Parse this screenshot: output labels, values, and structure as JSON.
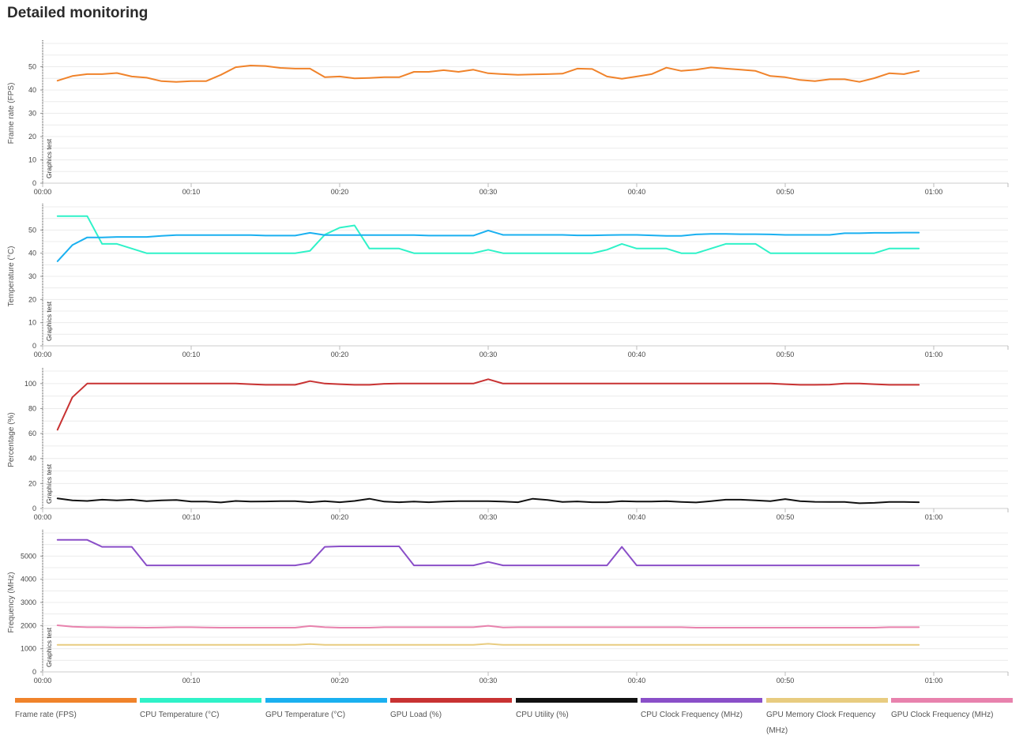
{
  "page": {
    "title": "Detailed monitoring"
  },
  "chart_data": [
    {
      "type": "line",
      "ylabel": "Frame rate (FPS)",
      "marker_label": "Graphics test",
      "x_ticks": [
        "00:00",
        "00:10",
        "00:20",
        "00:30",
        "00:40",
        "00:50",
        "01:00"
      ],
      "y_ticks": [
        0,
        10,
        20,
        30,
        40,
        50
      ],
      "ylim": [
        0,
        60
      ],
      "xlim": [
        0,
        65
      ],
      "series": [
        {
          "name": "Frame rate (FPS)",
          "color": "#f0832b",
          "key": "fps",
          "x": [
            1,
            2,
            3,
            4,
            5,
            6,
            7,
            8,
            9,
            10,
            11,
            12,
            13,
            14,
            15,
            16,
            17,
            18,
            19,
            20,
            21,
            22,
            23,
            24,
            25,
            26,
            27,
            28,
            29,
            30,
            31,
            32,
            33,
            34,
            35,
            36,
            37,
            38,
            39,
            40,
            41,
            42,
            43,
            44,
            45,
            46,
            47,
            48,
            49,
            50,
            51,
            52,
            53,
            54,
            55,
            56,
            57,
            58,
            59
          ],
          "values": [
            44,
            46,
            46.8,
            46.8,
            47.3,
            45.8,
            45.3,
            43.8,
            43.5,
            43.8,
            43.8,
            46.5,
            49.8,
            50.5,
            50.3,
            49.5,
            49.2,
            49.2,
            45.5,
            45.8,
            45,
            45.2,
            45.5,
            45.5,
            47.8,
            47.8,
            48.5,
            47.8,
            48.7,
            47.2,
            46.8,
            46.5,
            46.7,
            46.8,
            47,
            49.2,
            49,
            45.8,
            44.8,
            45.8,
            46.8,
            49.6,
            48.2,
            48.7,
            49.7,
            49.2,
            48.7,
            48.2,
            46,
            45.5,
            44.3,
            43.8,
            44.6,
            44.6,
            43.5,
            45.1,
            47.2,
            46.8,
            48.2
          ]
        }
      ]
    },
    {
      "type": "line",
      "ylabel": "Temperature (°C)",
      "marker_label": "Graphics test",
      "x_ticks": [
        "00:00",
        "00:10",
        "00:20",
        "00:30",
        "00:40",
        "00:50",
        "01:00"
      ],
      "y_ticks": [
        0,
        10,
        20,
        30,
        40,
        50
      ],
      "ylim": [
        0,
        60
      ],
      "xlim": [
        0,
        65
      ],
      "series": [
        {
          "name": "CPU Temperature (°C)",
          "color": "#2ff2c8",
          "key": "cpu-temp",
          "x": [
            1,
            2,
            3,
            4,
            5,
            6,
            7,
            8,
            9,
            10,
            11,
            12,
            13,
            14,
            15,
            16,
            17,
            18,
            19,
            20,
            21,
            22,
            23,
            24,
            25,
            26,
            27,
            28,
            29,
            30,
            31,
            32,
            33,
            34,
            35,
            36,
            37,
            38,
            39,
            40,
            41,
            42,
            43,
            44,
            45,
            46,
            47,
            48,
            49,
            50,
            51,
            52,
            53,
            54,
            55,
            56,
            57,
            58,
            59
          ],
          "values": [
            56,
            56,
            56,
            44,
            44,
            42,
            40,
            40,
            40,
            40,
            40,
            40,
            40,
            40,
            40,
            40,
            40,
            41,
            48,
            51,
            52,
            42,
            42,
            42,
            40,
            40,
            40,
            40,
            40,
            41.5,
            40,
            40,
            40,
            40,
            40,
            40,
            40,
            41.5,
            44,
            42,
            42,
            42,
            40,
            40,
            42,
            44,
            44,
            44,
            40,
            40,
            40,
            40,
            40,
            40,
            40,
            40,
            42,
            42,
            42
          ]
        },
        {
          "name": "GPU Temperature (°C)",
          "color": "#1ab0f0",
          "key": "gpu-temp",
          "x": [
            1,
            2,
            3,
            4,
            5,
            6,
            7,
            8,
            9,
            10,
            11,
            12,
            13,
            14,
            15,
            16,
            17,
            18,
            19,
            20,
            21,
            22,
            23,
            24,
            25,
            26,
            27,
            28,
            29,
            30,
            31,
            32,
            33,
            34,
            35,
            36,
            37,
            38,
            39,
            40,
            41,
            42,
            43,
            44,
            45,
            46,
            47,
            48,
            49,
            50,
            51,
            52,
            53,
            54,
            55,
            56,
            57,
            58,
            59
          ],
          "values": [
            36.5,
            43.5,
            46.8,
            46.8,
            47,
            47,
            47,
            47.5,
            47.8,
            47.8,
            47.8,
            47.8,
            47.8,
            47.8,
            47.6,
            47.6,
            47.6,
            48.8,
            47.8,
            47.8,
            47.8,
            47.8,
            47.8,
            47.8,
            47.8,
            47.6,
            47.6,
            47.6,
            47.6,
            49.8,
            47.9,
            47.9,
            47.9,
            47.9,
            47.9,
            47.7,
            47.7,
            47.8,
            47.9,
            47.9,
            47.7,
            47.5,
            47.5,
            48.1,
            48.3,
            48.3,
            48.2,
            48.2,
            48.1,
            47.9,
            47.9,
            47.9,
            47.9,
            48.6,
            48.6,
            48.8,
            48.8,
            48.9,
            48.9
          ]
        }
      ]
    },
    {
      "type": "line",
      "ylabel": "Percentage (%)",
      "marker_label": "Graphics test",
      "x_ticks": [
        "00:00",
        "00:10",
        "00:20",
        "00:30",
        "00:40",
        "00:50",
        "01:00"
      ],
      "y_ticks": [
        0,
        20,
        40,
        60,
        80,
        100
      ],
      "ylim": [
        0,
        110
      ],
      "xlim": [
        0,
        65
      ],
      "series": [
        {
          "name": "GPU Load (%)",
          "color": "#c83232",
          "key": "gpu-load",
          "x": [
            1,
            2,
            3,
            4,
            5,
            6,
            7,
            8,
            9,
            10,
            11,
            12,
            13,
            14,
            15,
            16,
            17,
            18,
            19,
            20,
            21,
            22,
            23,
            24,
            25,
            26,
            27,
            28,
            29,
            30,
            31,
            32,
            33,
            34,
            35,
            36,
            37,
            38,
            39,
            40,
            41,
            42,
            43,
            44,
            45,
            46,
            47,
            48,
            49,
            50,
            51,
            52,
            53,
            54,
            55,
            56,
            57,
            58,
            59
          ],
          "values": [
            63,
            89,
            100,
            100,
            100,
            100,
            100,
            100,
            100,
            100,
            100,
            100,
            100,
            99.5,
            99,
            99,
            99,
            102,
            100,
            99.5,
            99,
            99,
            99.8,
            100,
            100,
            100,
            100,
            100,
            100,
            103.5,
            100,
            100,
            100,
            100,
            100,
            100,
            100,
            100,
            100,
            100,
            100,
            100,
            100,
            100,
            100,
            100,
            100,
            100,
            100,
            99.5,
            99,
            99,
            99.2,
            100,
            100,
            99.5,
            99,
            99,
            99
          ]
        },
        {
          "name": "CPU Utility (%)",
          "color": "#111111",
          "key": "cpu-util",
          "x": [
            1,
            2,
            3,
            4,
            5,
            6,
            7,
            8,
            9,
            10,
            11,
            12,
            13,
            14,
            15,
            16,
            17,
            18,
            19,
            20,
            21,
            22,
            23,
            24,
            25,
            26,
            27,
            28,
            29,
            30,
            31,
            32,
            33,
            34,
            35,
            36,
            37,
            38,
            39,
            40,
            41,
            42,
            43,
            44,
            45,
            46,
            47,
            48,
            49,
            50,
            51,
            52,
            53,
            54,
            55,
            56,
            57,
            58,
            59
          ],
          "values": [
            8,
            6.5,
            6,
            7,
            6.5,
            7,
            5.8,
            6.5,
            6.8,
            5.5,
            5.5,
            4.8,
            6,
            5.5,
            5.6,
            5.8,
            5.8,
            5,
            5.8,
            5,
            6,
            7.8,
            5.5,
            5,
            5.5,
            5,
            5.5,
            5.8,
            5.8,
            5.8,
            5.5,
            5,
            7.8,
            6.8,
            5.2,
            5.6,
            5,
            5,
            5.8,
            5.5,
            5.5,
            5.8,
            5.2,
            4.8,
            5.8,
            7,
            7,
            6.5,
            5.8,
            7.5,
            5.8,
            5.3,
            5.2,
            5.2,
            4.2,
            4.5,
            5.2,
            5.2,
            5
          ]
        }
      ]
    },
    {
      "type": "line",
      "ylabel": "Frequency (MHz)",
      "marker_label": "Graphics test",
      "x_ticks": [
        "00:00",
        "00:10",
        "00:20",
        "00:30",
        "00:40",
        "00:50",
        "01:00"
      ],
      "y_ticks": [
        0,
        1000,
        2000,
        3000,
        4000,
        5000
      ],
      "ylim": [
        0,
        6000
      ],
      "xlim": [
        0,
        65
      ],
      "series": [
        {
          "name": "CPU Clock Frequency (MHz)",
          "color": "#8a4fc8",
          "key": "cpu-clock",
          "x": [
            1,
            2,
            3,
            4,
            5,
            6,
            7,
            8,
            9,
            10,
            11,
            12,
            13,
            14,
            15,
            16,
            17,
            18,
            19,
            20,
            21,
            22,
            23,
            24,
            25,
            26,
            27,
            28,
            29,
            30,
            31,
            32,
            33,
            34,
            35,
            36,
            37,
            38,
            39,
            40,
            41,
            42,
            43,
            44,
            45,
            46,
            47,
            48,
            49,
            50,
            51,
            52,
            53,
            54,
            55,
            56,
            57,
            58,
            59
          ],
          "values": [
            5700,
            5700,
            5700,
            5400,
            5400,
            5400,
            4600,
            4600,
            4600,
            4600,
            4600,
            4600,
            4600,
            4600,
            4600,
            4600,
            4600,
            4700,
            5400,
            5420,
            5420,
            5420,
            5420,
            5420,
            4600,
            4600,
            4600,
            4600,
            4600,
            4750,
            4600,
            4600,
            4600,
            4600,
            4600,
            4600,
            4600,
            4600,
            5400,
            4600,
            4600,
            4600,
            4600,
            4600,
            4600,
            4600,
            4600,
            4600,
            4600,
            4600,
            4600,
            4600,
            4600,
            4600,
            4600,
            4600,
            4600,
            4600,
            4600
          ]
        },
        {
          "name": "GPU Memory Clock Frequency (MHz)",
          "color": "#e8cc80",
          "key": "gpu-mem-clock",
          "x": [
            1,
            2,
            3,
            4,
            5,
            6,
            7,
            8,
            9,
            10,
            11,
            12,
            13,
            14,
            15,
            16,
            17,
            18,
            19,
            20,
            21,
            22,
            23,
            24,
            25,
            26,
            27,
            28,
            29,
            30,
            31,
            32,
            33,
            34,
            35,
            36,
            37,
            38,
            39,
            40,
            41,
            42,
            43,
            44,
            45,
            46,
            47,
            48,
            49,
            50,
            51,
            52,
            53,
            54,
            55,
            56,
            57,
            58,
            59
          ],
          "values": [
            1165,
            1165,
            1165,
            1165,
            1165,
            1165,
            1165,
            1165,
            1165,
            1165,
            1165,
            1165,
            1165,
            1165,
            1165,
            1165,
            1165,
            1200,
            1165,
            1165,
            1165,
            1165,
            1165,
            1165,
            1165,
            1165,
            1165,
            1165,
            1165,
            1215,
            1165,
            1165,
            1165,
            1165,
            1165,
            1165,
            1165,
            1165,
            1165,
            1165,
            1165,
            1165,
            1165,
            1165,
            1165,
            1165,
            1165,
            1165,
            1165,
            1165,
            1165,
            1165,
            1165,
            1165,
            1165,
            1165,
            1165,
            1165,
            1165
          ]
        },
        {
          "name": "GPU Clock Frequency (MHz)",
          "color": "#e882ad",
          "key": "gpu-clock",
          "x": [
            1,
            2,
            3,
            4,
            5,
            6,
            7,
            8,
            9,
            10,
            11,
            12,
            13,
            14,
            15,
            16,
            17,
            18,
            19,
            20,
            21,
            22,
            23,
            24,
            25,
            26,
            27,
            28,
            29,
            30,
            31,
            32,
            33,
            34,
            35,
            36,
            37,
            38,
            39,
            40,
            41,
            42,
            43,
            44,
            45,
            46,
            47,
            48,
            49,
            50,
            51,
            52,
            53,
            54,
            55,
            56,
            57,
            58,
            59
          ],
          "values": [
            2010,
            1950,
            1930,
            1930,
            1920,
            1920,
            1910,
            1920,
            1930,
            1930,
            1920,
            1910,
            1910,
            1910,
            1910,
            1910,
            1910,
            1980,
            1930,
            1910,
            1910,
            1910,
            1930,
            1930,
            1930,
            1930,
            1930,
            1930,
            1930,
            1990,
            1920,
            1930,
            1930,
            1930,
            1930,
            1930,
            1930,
            1930,
            1930,
            1930,
            1930,
            1930,
            1930,
            1910,
            1910,
            1910,
            1910,
            1910,
            1910,
            1910,
            1910,
            1910,
            1910,
            1910,
            1910,
            1910,
            1930,
            1930,
            1930
          ]
        }
      ]
    }
  ],
  "legend": [
    {
      "label": "Frame rate (FPS)",
      "color": "#f0832b"
    },
    {
      "label": "CPU Temperature (°C)",
      "color": "#2ff2c8"
    },
    {
      "label": "GPU Temperature (°C)",
      "color": "#1ab0f0"
    },
    {
      "label": "GPU Load (%)",
      "color": "#c83232"
    },
    {
      "label": "CPU Utility (%)",
      "color": "#111111"
    },
    {
      "label": "CPU Clock Frequency (MHz)",
      "color": "#8a4fc8"
    },
    {
      "label": "GPU Memory Clock Frequency (MHz)",
      "color": "#e8cc80"
    },
    {
      "label": "GPU Clock Frequency (MHz)",
      "color": "#e882ad"
    }
  ]
}
